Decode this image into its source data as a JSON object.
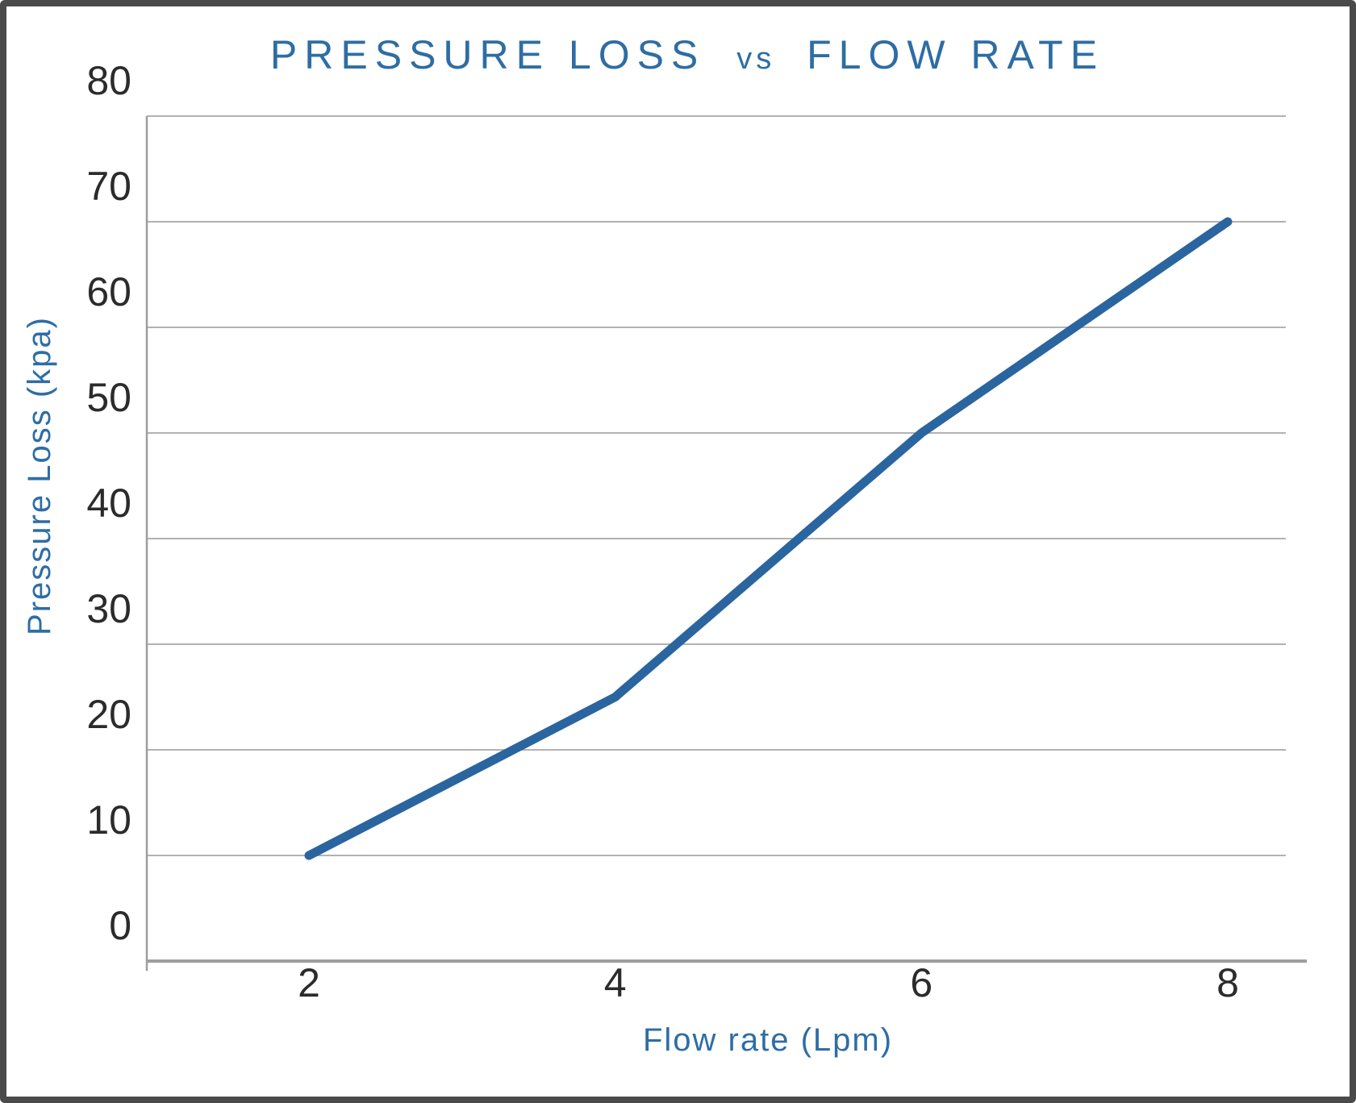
{
  "chart_data": {
    "type": "line",
    "title": "PRESSURE LOSS vs FLOW RATE",
    "title_parts": {
      "part1": "PRESSURE LOSS",
      "vs": "vs",
      "part2": "FLOW RATE"
    },
    "xlabel": "Flow rate (Lpm)",
    "ylabel": "Pressure Loss (kpa)",
    "x": [
      2,
      4,
      6,
      8
    ],
    "series": [
      {
        "name": "Pressure Loss",
        "values": [
          10,
          25,
          50,
          70
        ]
      }
    ],
    "x_ticks": [
      2,
      4,
      6,
      8
    ],
    "y_ticks": [
      0,
      10,
      20,
      30,
      40,
      50,
      60,
      70,
      80
    ],
    "xlim": [
      1,
      8.4
    ],
    "ylim": [
      0,
      80
    ],
    "grid": "horizontal",
    "legend": "none",
    "colors": {
      "line": "#2a659f",
      "blue_text": "#2e6da4",
      "tick_text": "#2b2b2b",
      "gridline": "#b2b2b2",
      "axis": "#9e9e9e",
      "frame_border": "#4a4a4a",
      "background": "#ffffff"
    }
  }
}
